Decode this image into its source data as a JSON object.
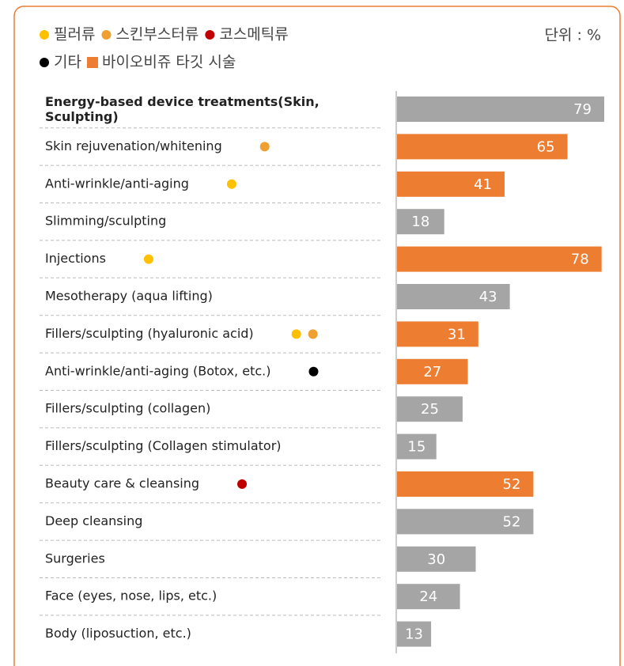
{
  "chart_data": {
    "type": "bar",
    "orientation": "horizontal",
    "unit_label": "단위 : %",
    "legend": [
      {
        "name": "필러류",
        "color": "#ffc000",
        "shape": "circle"
      },
      {
        "name": "스킨부스터류",
        "color": "#f0a030",
        "shape": "circle"
      },
      {
        "name": "코스메틱류",
        "color": "#c00000",
        "shape": "circle"
      },
      {
        "name": "기타",
        "color": "#000000",
        "shape": "circle"
      },
      {
        "name": "바이오비쥬 타깃 시술",
        "color": "#ed7d31",
        "shape": "square"
      }
    ],
    "categories": [
      "Energy-based device treatments(Skin, Sculpting)",
      "Skin rejuvenation/whitening",
      "Anti-wrinkle/anti-aging",
      "Slimming/sculpting",
      "Injections",
      "Mesotherapy (aqua lifting)",
      "Fillers/sculpting (hyaluronic acid)",
      "Anti-wrinkle/anti-aging (Botox, etc.)",
      "Fillers/sculpting (collagen)",
      "Fillers/sculpting (Collagen stimulator)",
      "Beauty care & cleansing",
      "Deep cleansing",
      "Surgeries",
      "Face (eyes, nose, lips, etc.)",
      "Body (liposuction, etc.)"
    ],
    "values": [
      79,
      65,
      41,
      18,
      78,
      43,
      31,
      27,
      25,
      15,
      52,
      52,
      30,
      24,
      13
    ],
    "bar_colors": [
      "#a5a5a5",
      "#ed7d31",
      "#ed7d31",
      "#a5a5a5",
      "#ed7d31",
      "#a5a5a5",
      "#ed7d31",
      "#ed7d31",
      "#a5a5a5",
      "#a5a5a5",
      "#ed7d31",
      "#a5a5a5",
      "#a5a5a5",
      "#a5a5a5",
      "#a5a5a5"
    ],
    "markers": [
      [],
      [
        1
      ],
      [
        0
      ],
      [],
      [
        0
      ],
      [],
      [
        0,
        1
      ],
      [
        3
      ],
      [],
      [],
      [
        2
      ],
      [],
      [],
      [],
      []
    ]
  }
}
